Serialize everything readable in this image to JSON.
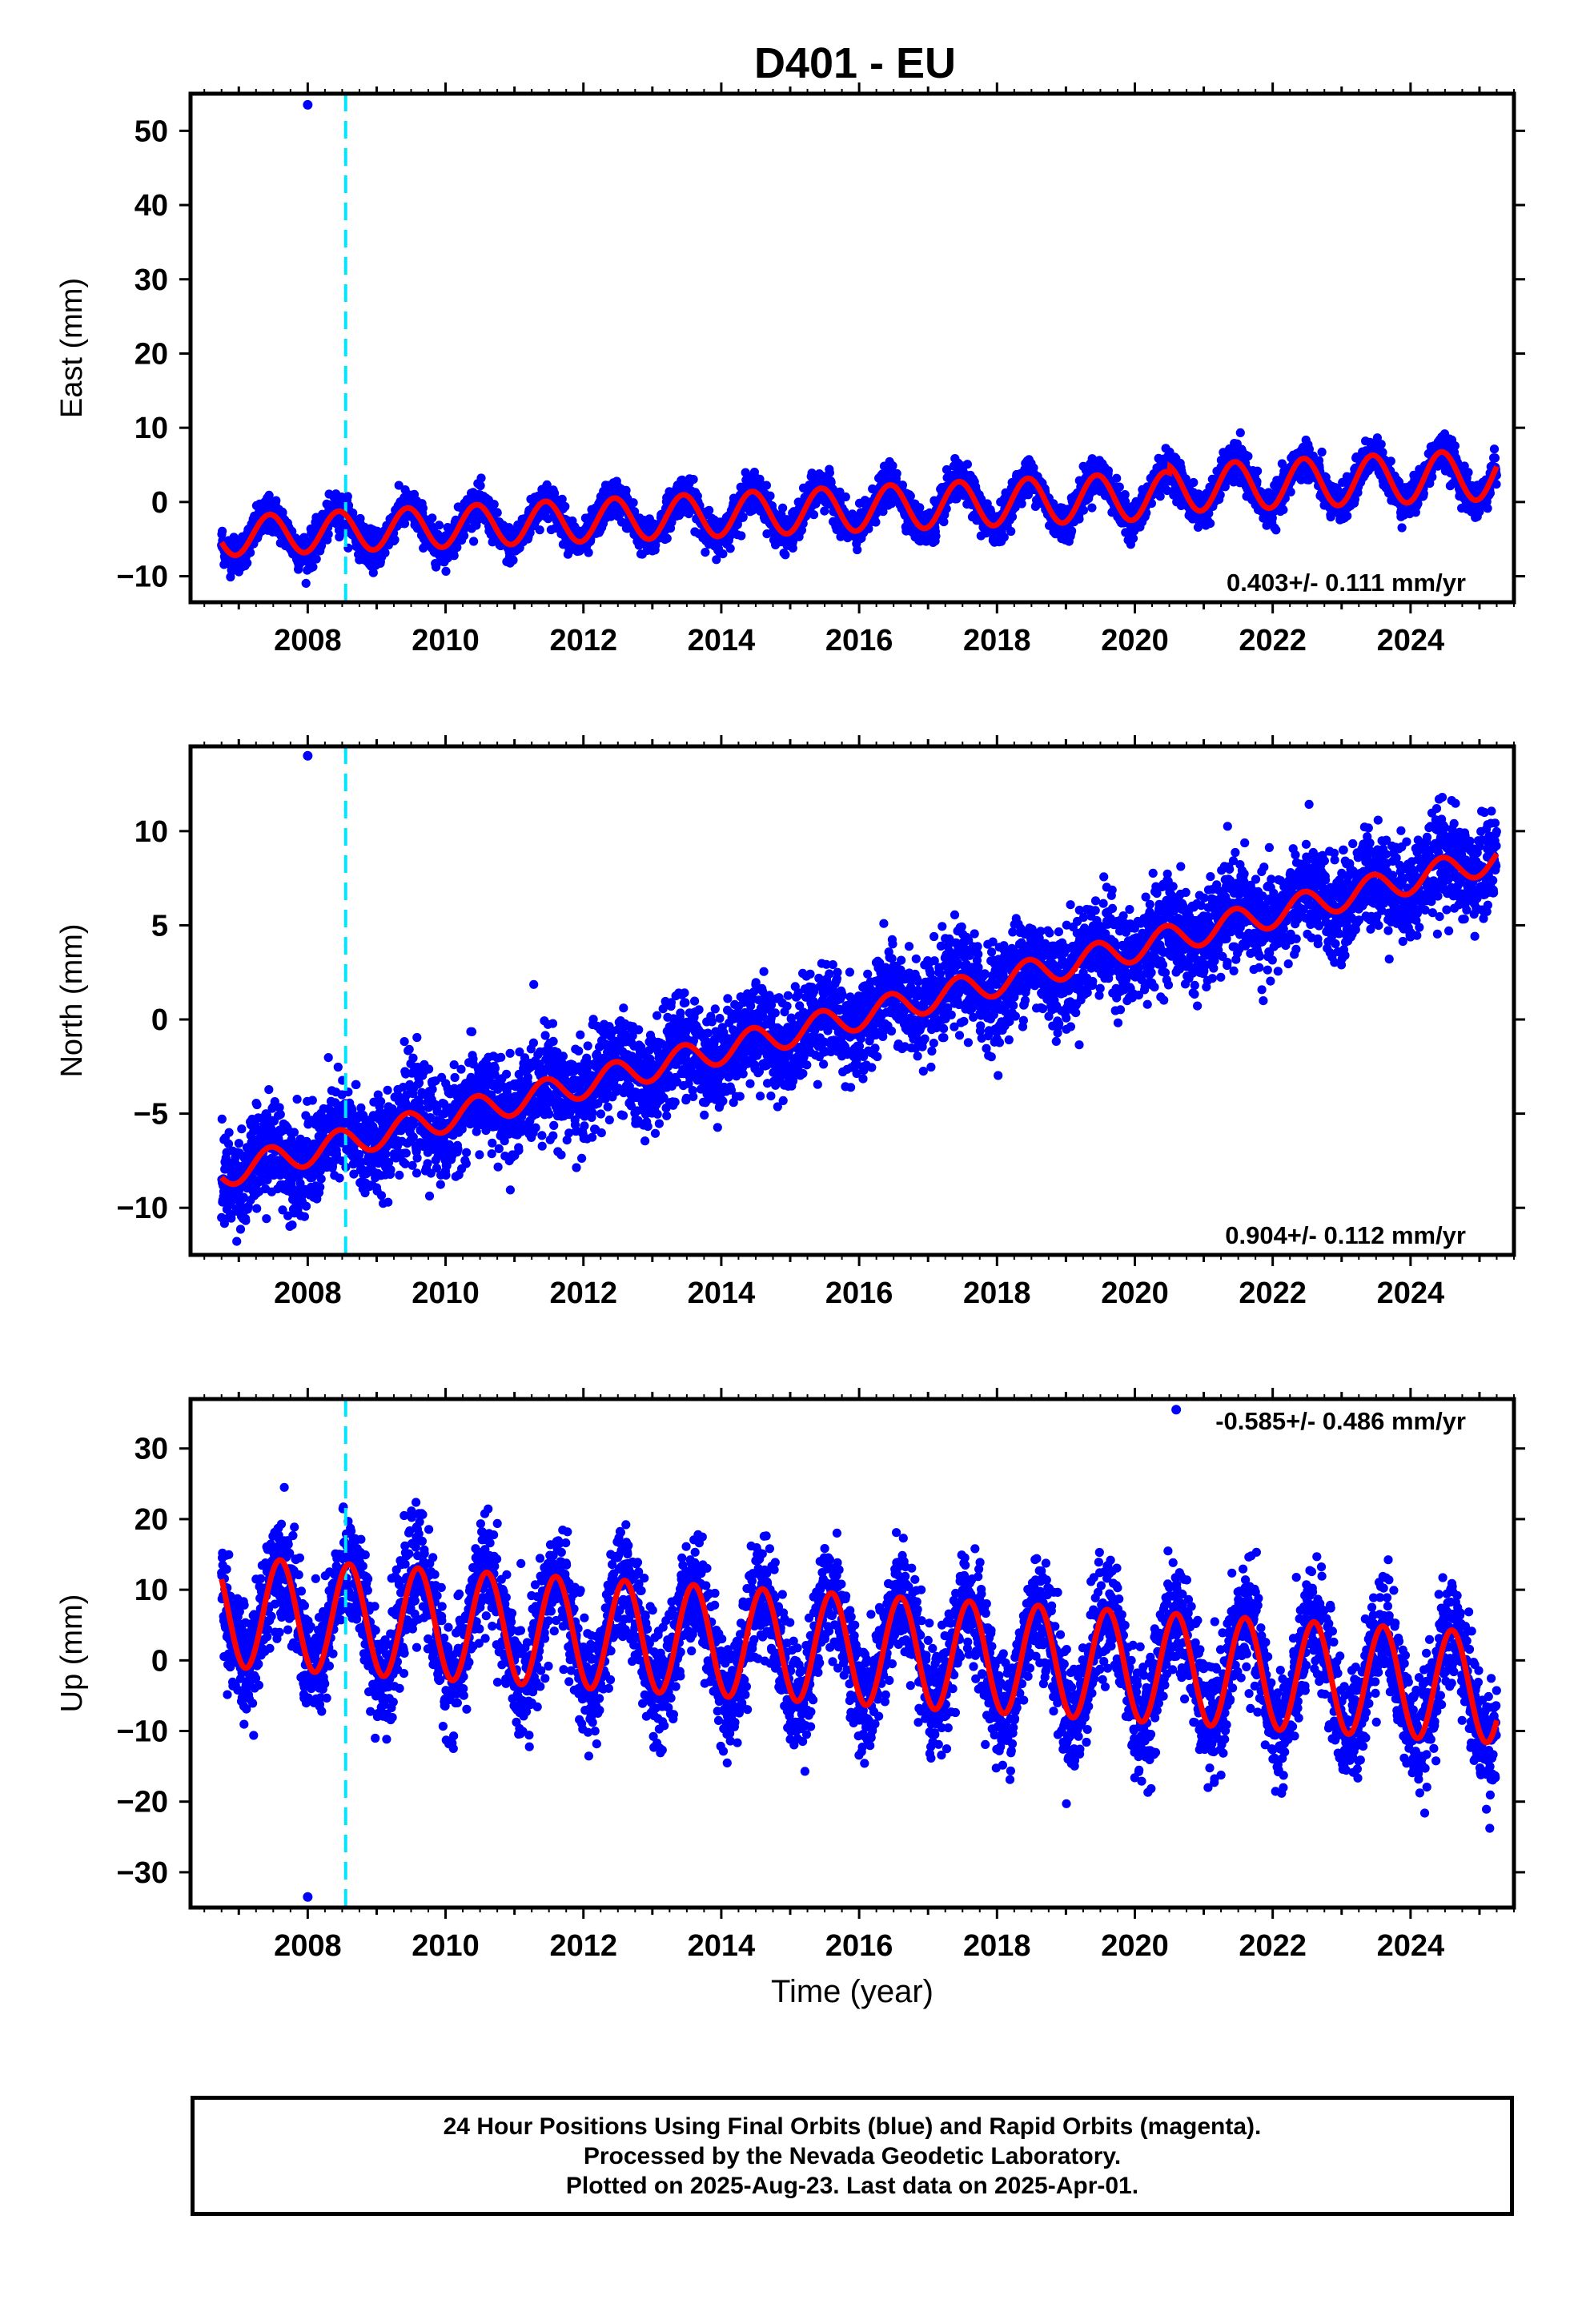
{
  "title": "D401 - EU",
  "colors": {
    "data": "#0000ff",
    "model": "#ff0000",
    "event": "#00e5ff",
    "frame": "#000000"
  },
  "chart_data": [
    {
      "type": "scatter",
      "component": "east",
      "ylabel": "East (mm)",
      "xlabel": "",
      "xlim": [
        2006.3,
        2025.5
      ],
      "ylim": [
        -13.5,
        55
      ],
      "yticks": [
        -10,
        0,
        10,
        20,
        30,
        40,
        50
      ],
      "xticks": [
        2008,
        2010,
        2012,
        2014,
        2016,
        2018,
        2020,
        2022,
        2024
      ],
      "rate_label": "0.403+/- 0.111 mm/yr",
      "rate_label_position": "bottom-right",
      "data_start": 2006.75,
      "data_end": 2025.25,
      "model": {
        "offset_at_2016": -0.9,
        "rate": 0.403,
        "annual_amplitude": 3.0,
        "annual_amplitude_trend": 0.04,
        "phase_peak_year_fraction": 0.45,
        "late_offset_after_2020_5": 0.9
      },
      "scatter_spread": 1.2,
      "outliers": [
        {
          "x": 2008.0,
          "y": 53.5
        }
      ],
      "event_lines": [
        2008.55
      ]
    },
    {
      "type": "scatter",
      "component": "north",
      "ylabel": "North (mm)",
      "xlabel": "",
      "xlim": [
        2006.3,
        2025.5
      ],
      "ylim": [
        -12.5,
        14.5
      ],
      "yticks": [
        -10,
        -5,
        0,
        5,
        10
      ],
      "xticks": [
        2008,
        2010,
        2012,
        2014,
        2016,
        2018,
        2020,
        2022,
        2024
      ],
      "rate_label": "0.904+/- 0.112 mm/yr",
      "rate_label_position": "bottom-right",
      "data_start": 2006.75,
      "data_end": 2025.25,
      "model": {
        "offset_at_2016": 0.2,
        "rate": 0.904,
        "annual_amplitude": 0.75,
        "annual_amplitude_trend": 0.0,
        "phase_peak_year_fraction": 0.45,
        "late_offset_after_2020_5": 0
      },
      "scatter_spread": 1.3,
      "outliers": [
        {
          "x": 2008.0,
          "y": 14.0
        }
      ],
      "event_lines": [
        2008.55
      ]
    },
    {
      "type": "scatter",
      "component": "up",
      "ylabel": "Up (mm)",
      "xlabel": "Time (year)",
      "xlim": [
        2006.3,
        2025.5
      ],
      "ylim": [
        -35,
        37
      ],
      "yticks": [
        -30,
        -20,
        -10,
        0,
        10,
        20,
        30
      ],
      "xticks": [
        2008,
        2010,
        2012,
        2014,
        2016,
        2018,
        2020,
        2022,
        2024
      ],
      "rate_label": "-0.585+/- 0.486 mm/yr",
      "rate_label_position": "top-right",
      "data_start": 2006.75,
      "data_end": 2025.25,
      "model": {
        "offset_at_2016": 1.5,
        "rate": -0.585,
        "annual_amplitude": 7.8,
        "annual_amplitude_trend": 0.0,
        "phase_peak_year_fraction": 0.6,
        "late_offset_after_2020_5": 0
      },
      "scatter_spread": 4.0,
      "outliers": [
        {
          "x": 2008.0,
          "y": -33.5
        },
        {
          "x": 2020.6,
          "y": 35.5
        }
      ],
      "event_lines": [
        2008.55
      ]
    }
  ],
  "footer": {
    "line1": "24 Hour Positions Using Final Orbits (blue) and Rapid Orbits (magenta).",
    "line2": "Processed by the Nevada Geodetic Laboratory.",
    "line3": "Plotted on 2025-Aug-23. Last data on 2025-Apr-01."
  }
}
